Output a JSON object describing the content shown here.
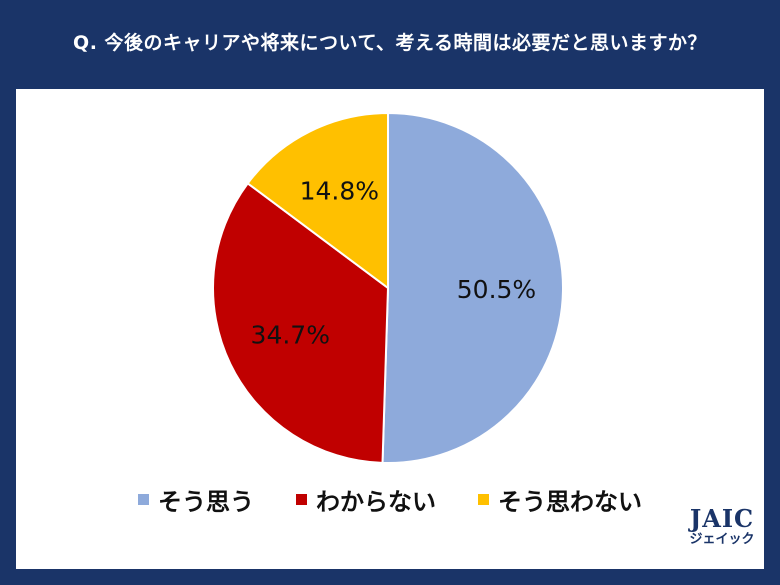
{
  "title": "Q. 今後のキャリアや将来について、考える時間は必要だと思いますか？",
  "colors": {
    "background": "#1a3468",
    "panel": "#ffffff",
    "slice_1": "#8eaadb",
    "slice_2": "#c00000",
    "slice_3": "#ffc000"
  },
  "chart_data": {
    "type": "pie",
    "labels": [
      "そう思う",
      "わからない",
      "そう思わない"
    ],
    "values": [
      50.5,
      34.7,
      14.8
    ],
    "data_labels": [
      "50.5%",
      "34.7%",
      "14.8%"
    ],
    "colors": [
      "#8eaadb",
      "#c00000",
      "#ffc000"
    ],
    "start_angle": "12 o'clock",
    "direction": "clockwise",
    "legend_placement": "bottom"
  },
  "legend": [
    {
      "label": "そう思う",
      "color": "#8eaadb"
    },
    {
      "label": "わからない",
      "color": "#c00000"
    },
    {
      "label": "そう思わない",
      "color": "#ffc000"
    }
  ],
  "logo": {
    "main": "JAIC",
    "sub": "ジェイック"
  }
}
